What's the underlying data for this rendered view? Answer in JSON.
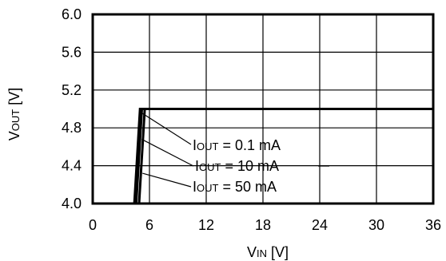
{
  "chart_data": {
    "type": "line",
    "title": "",
    "xlabel": {
      "main": "V",
      "sub": "IN",
      "unit": " [V]"
    },
    "ylabel": {
      "main": "V",
      "sub": "OUT",
      "unit": " [V]"
    },
    "xlim": [
      0,
      36
    ],
    "ylim": [
      4.0,
      6.0
    ],
    "x_ticks": [
      "0",
      "6",
      "12",
      "18",
      "24",
      "30",
      "36"
    ],
    "y_ticks": [
      "4.0",
      "4.4",
      "4.8",
      "5.2",
      "5.6",
      "6.0"
    ],
    "grid": true,
    "series": [
      {
        "name": "IOUT = 0.1 mA",
        "x": [
          4.4,
          5.0,
          36
        ],
        "y": [
          4.0,
          5.0,
          5.0
        ]
      },
      {
        "name": "IOUT = 10 mA",
        "x": [
          4.6,
          5.2,
          36
        ],
        "y": [
          4.0,
          5.0,
          5.0
        ]
      },
      {
        "name": "IOUT = 50 mA",
        "x": [
          4.9,
          5.5,
          36
        ],
        "y": [
          4.0,
          5.0,
          5.0
        ]
      }
    ],
    "annotations": [
      {
        "main": "I",
        "sub": "OUT",
        "rest": " = 0.1 mA"
      },
      {
        "main": "I",
        "sub": "OUT",
        "rest": " = 10 mA"
      },
      {
        "main": "I",
        "sub": "OUT",
        "rest": " = 50 mA"
      }
    ]
  }
}
